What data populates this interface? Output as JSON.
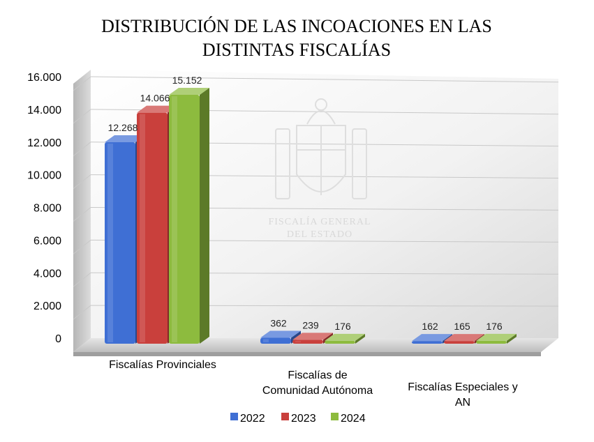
{
  "chart_data": {
    "type": "bar",
    "title": "DISTRIBUCIÓN DE LAS INCOACIONES EN LAS DISTINTAS FISCALÍAS",
    "title_lines": [
      "DISTRIBUCIÓN DE LAS INCOACIONES EN LAS",
      "DISTINTAS FISCALÍAS"
    ],
    "categories": [
      "Fiscalías Provinciales",
      "Fiscalías de Comunidad Autónoma",
      "Fiscalías Especiales y AN"
    ],
    "category_lines": [
      [
        "Fiscalías Provinciales"
      ],
      [
        "Fiscalías de",
        "Comunidad Autónoma"
      ],
      [
        "Fiscalías Especiales y",
        "AN"
      ]
    ],
    "series": [
      {
        "name": "2022",
        "values": [
          12268,
          362,
          162
        ],
        "labels": [
          "12.268",
          "362",
          "162"
        ],
        "color": "#3f6fd4"
      },
      {
        "name": "2023",
        "values": [
          14066,
          239,
          165
        ],
        "labels": [
          "14.066",
          "239",
          "165"
        ],
        "color": "#c9403c"
      },
      {
        "name": "2024",
        "values": [
          15152,
          176,
          176
        ],
        "labels": [
          "15.152",
          "176",
          "176"
        ],
        "color": "#8dbb3e"
      }
    ],
    "ylim": [
      0,
      16000
    ],
    "yticks": [
      0,
      2000,
      4000,
      6000,
      8000,
      10000,
      12000,
      14000,
      16000
    ],
    "ytick_labels": [
      "0",
      "2.000",
      "4.000",
      "6.000",
      "8.000",
      "10.000",
      "12.000",
      "14.000",
      "16.000"
    ],
    "grid": true,
    "three_d": true,
    "legend_position": "bottom",
    "watermark": [
      "FISCALÍA GENERAL",
      "DEL ESTADO"
    ]
  }
}
